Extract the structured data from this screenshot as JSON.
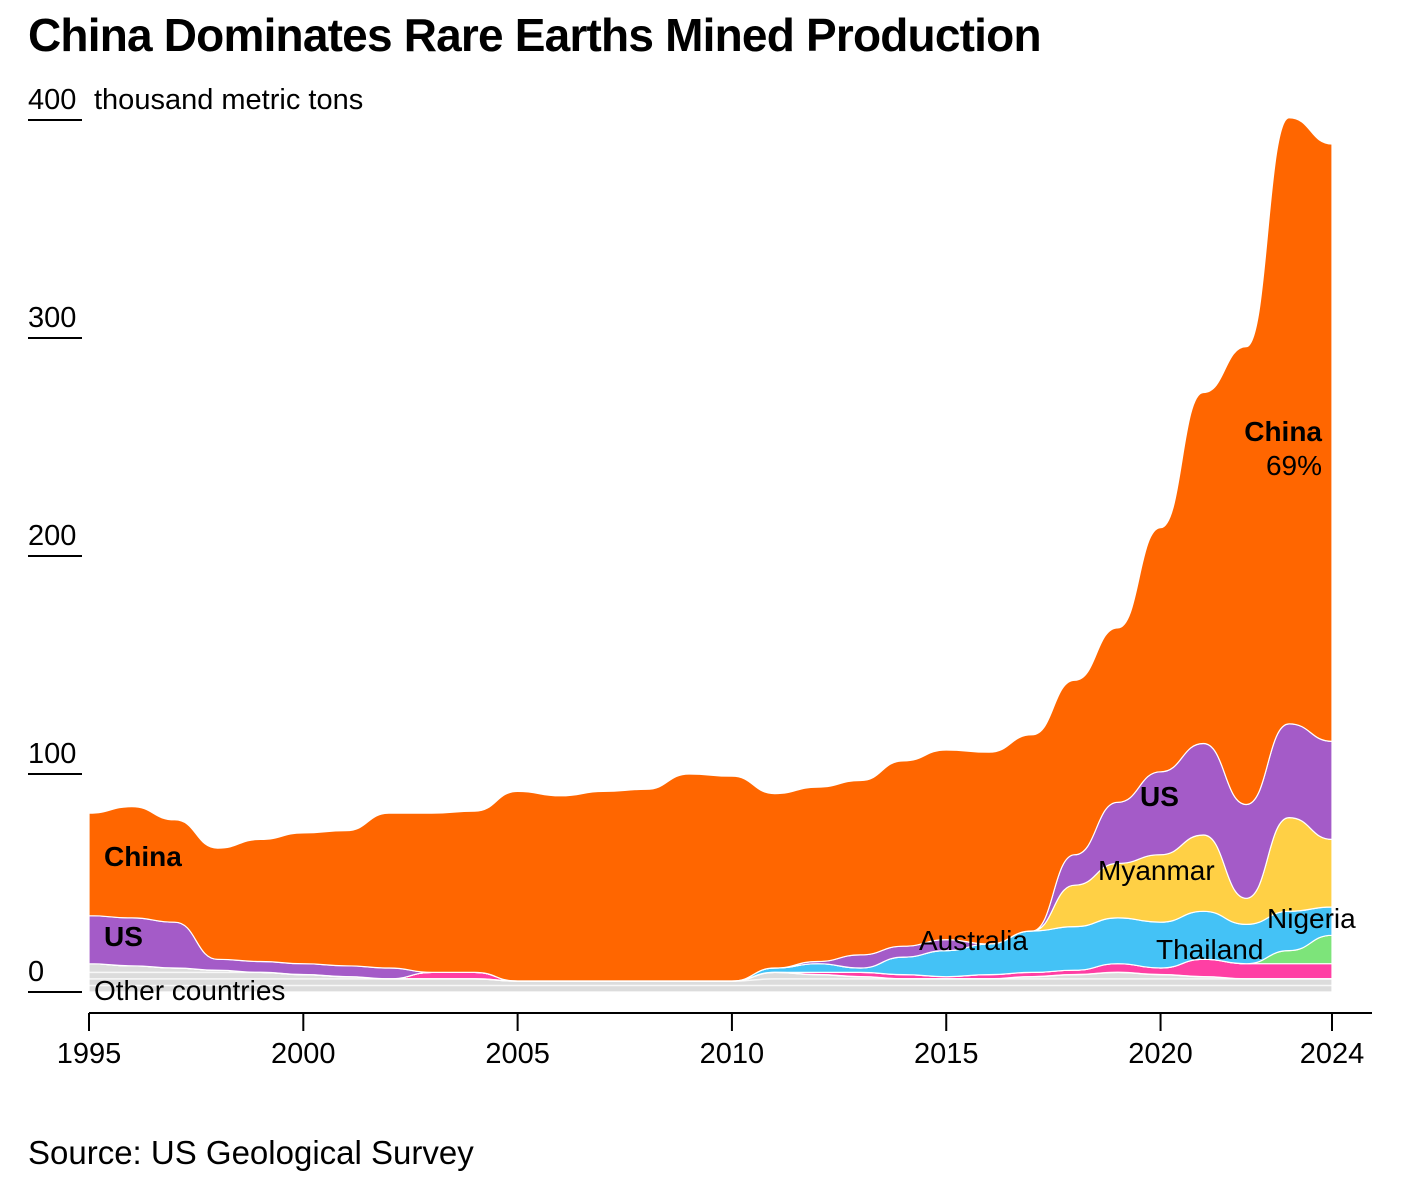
{
  "chart_data": {
    "type": "area",
    "title": "China Dominates Rare Earths Mined Production",
    "ylabel": "thousand metric tons",
    "source": "Source: US Geological Survey",
    "x": [
      1995,
      1996,
      1997,
      1998,
      1999,
      2000,
      2001,
      2002,
      2003,
      2004,
      2005,
      2006,
      2007,
      2008,
      2009,
      2010,
      2011,
      2012,
      2013,
      2014,
      2015,
      2016,
      2017,
      2018,
      2019,
      2020,
      2021,
      2022,
      2023,
      2024
    ],
    "xlim": [
      1995,
      2024
    ],
    "ylim": [
      0,
      400
    ],
    "x_ticks": [
      1995,
      2000,
      2005,
      2010,
      2015,
      2020,
      2024
    ],
    "y_ticks": [
      0,
      100,
      200,
      300,
      400
    ],
    "y_tick_labels": [
      "0",
      "100",
      "200",
      "300",
      "400"
    ],
    "y_unit_label": "thousand metric tons",
    "grid": false,
    "colors": {
      "China": "#ff6600",
      "US": "#a45bc8",
      "Myanmar": "#ffd045",
      "Australia": "#44c2f6",
      "Thailand": "#ff3fa4",
      "Nigeria": "#7de47a",
      "Other countries": "#dcdcdc"
    },
    "series": [
      {
        "name": "Other countries",
        "values": [
          13,
          12,
          11,
          10,
          9,
          8,
          7,
          6,
          6,
          6,
          5,
          5,
          5,
          5,
          5,
          5,
          9,
          8,
          7,
          6,
          6,
          6,
          7,
          8,
          9,
          8,
          7,
          6,
          6,
          6
        ]
      },
      {
        "name": "Thailand",
        "values": [
          0,
          0,
          0,
          0,
          0,
          0,
          0,
          0,
          3,
          3,
          0,
          0,
          0,
          0,
          0,
          0,
          0,
          1,
          2,
          2,
          1,
          2,
          2,
          2,
          4,
          3,
          8,
          7,
          7,
          7
        ]
      },
      {
        "name": "Nigeria",
        "values": [
          0,
          0,
          0,
          0,
          0,
          0,
          0,
          0,
          0,
          0,
          0,
          0,
          0,
          0,
          0,
          0,
          0,
          0,
          0,
          0,
          0,
          0,
          0,
          0,
          0,
          0,
          0,
          0,
          6,
          13
        ]
      },
      {
        "name": "Australia",
        "values": [
          0,
          0,
          0,
          0,
          0,
          0,
          0,
          0,
          0,
          0,
          0,
          0,
          0,
          0,
          0,
          0,
          2,
          4,
          2,
          8,
          12,
          14,
          19,
          20,
          21,
          21,
          22,
          18,
          18,
          13
        ]
      },
      {
        "name": "Myanmar",
        "values": [
          0,
          0,
          0,
          0,
          0,
          0,
          0,
          0,
          0,
          0,
          0,
          0,
          0,
          0,
          0,
          0,
          0,
          0,
          0,
          0,
          0,
          0,
          0,
          19,
          25,
          31,
          35,
          12,
          43,
          31
        ]
      },
      {
        "name": "US",
        "values": [
          22,
          22,
          21,
          5,
          5,
          5,
          5,
          5,
          0,
          0,
          0,
          0,
          0,
          0,
          0,
          0,
          0,
          1,
          6,
          5,
          5,
          0,
          0,
          14,
          28,
          38,
          42,
          43,
          43,
          45
        ]
      },
      {
        "name": "China",
        "values": [
          47,
          51,
          47,
          51,
          56,
          60,
          62,
          71,
          73,
          74,
          87,
          85,
          87,
          88,
          95,
          94,
          80,
          80,
          80,
          85,
          87,
          88,
          90,
          80,
          80,
          112,
          161,
          210,
          278,
          274
        ]
      }
    ],
    "labels": {
      "china_left": "China",
      "china_right": "China",
      "china_share": "69%",
      "us": "US",
      "myanmar": "Myanmar",
      "australia": "Australia",
      "thailand": "Thailand",
      "nigeria": "Nigeria",
      "other": "Other countries"
    }
  }
}
